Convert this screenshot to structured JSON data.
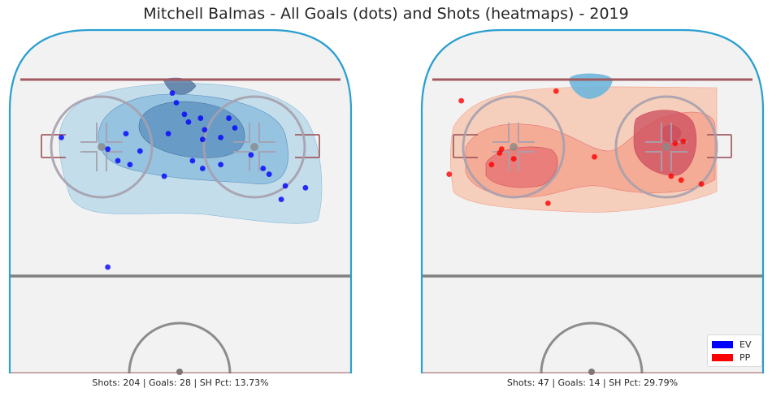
{
  "title": "Mitchell Balmas - All Goals (dots) and Shots (heatmaps) - 2019",
  "colors": {
    "ev": "#0000ff",
    "pp": "#ff0000",
    "boards": "#2a9fd0",
    "blue_line": "#808080",
    "goal_line": "#a05a60",
    "circle": "#a6a0ae",
    "ice": "#f2f2f2"
  },
  "legend": {
    "placement": "bottom-right",
    "entries": [
      {
        "label": "EV",
        "color": "#0000ff"
      },
      {
        "label": "PP",
        "color": "#ff0000"
      }
    ]
  },
  "chart_data": [
    {
      "type": "scatter",
      "panel": "left",
      "strength": "EV",
      "goal_color": "#0000ff",
      "heatmap_colors": [
        "#bcd9e9",
        "#86b9dc",
        "#5a8fbf",
        "#4a6d99"
      ],
      "stats_text": "Shots: 204 | Goals: 28 | SH Pct: 13.73%",
      "shots": 204,
      "goals": 28,
      "sh_pct": 13.73,
      "units": "feet from center of goal line (x: -42.5 to 42.5 across, y: 0 to 89 toward center ice)",
      "xlim": [
        -42.5,
        42.5
      ],
      "ylim": [
        0,
        89
      ],
      "goal_points": [
        {
          "x": -29.5,
          "y": 61
        },
        {
          "x": -18,
          "y": 58
        },
        {
          "x": -13.5,
          "y": 62
        },
        {
          "x": -15.5,
          "y": 55
        },
        {
          "x": -2,
          "y": 72.5
        },
        {
          "x": -1,
          "y": 70
        },
        {
          "x": 1,
          "y": 67
        },
        {
          "x": 2,
          "y": 65
        },
        {
          "x": 5,
          "y": 66
        },
        {
          "x": 6,
          "y": 63
        },
        {
          "x": -3,
          "y": 62
        },
        {
          "x": 5.5,
          "y": 60.5
        },
        {
          "x": 10,
          "y": 61
        },
        {
          "x": 12,
          "y": 66
        },
        {
          "x": 13.5,
          "y": 63.5
        },
        {
          "x": 17.5,
          "y": 56.5
        },
        {
          "x": 20.5,
          "y": 53
        },
        {
          "x": 10,
          "y": 54
        },
        {
          "x": -10,
          "y": 57.5
        },
        {
          "x": -12.5,
          "y": 54
        },
        {
          "x": 3,
          "y": 55
        },
        {
          "x": 5.5,
          "y": 53
        },
        {
          "x": -4,
          "y": 51
        },
        {
          "x": 22,
          "y": 51.5
        },
        {
          "x": 26,
          "y": 48.5
        },
        {
          "x": 31,
          "y": 48
        },
        {
          "x": 25,
          "y": 45
        },
        {
          "x": -18,
          "y": 27.5
        }
      ]
    },
    {
      "type": "scatter",
      "panel": "right",
      "strength": "PP",
      "goal_color": "#ff0000",
      "heatmap_colors": [
        "#f7c9b3",
        "#f4a08a",
        "#e46f70",
        "#cc4c5c"
      ],
      "stats_text": "Shots: 47 | Goals: 14 | SH Pct: 29.79%",
      "shots": 47,
      "goals": 14,
      "sh_pct": 29.79,
      "units": "feet from center of goal line (x: -42.5 to 42.5 across, y: 0 to 89 toward center ice)",
      "xlim": [
        -42.5,
        42.5
      ],
      "ylim": [
        0,
        89
      ],
      "goal_points": [
        {
          "x": -32.5,
          "y": 70.5
        },
        {
          "x": -9,
          "y": 73
        },
        {
          "x": -22.5,
          "y": 58
        },
        {
          "x": -23,
          "y": 57
        },
        {
          "x": -19.5,
          "y": 55.5
        },
        {
          "x": -25,
          "y": 54
        },
        {
          "x": -35.5,
          "y": 51.5
        },
        {
          "x": 0.5,
          "y": 56
        },
        {
          "x": 20.5,
          "y": 59.5
        },
        {
          "x": 22.5,
          "y": 60
        },
        {
          "x": 19.5,
          "y": 51
        },
        {
          "x": 22,
          "y": 50
        },
        {
          "x": 27,
          "y": 49
        },
        {
          "x": -11,
          "y": 44
        }
      ]
    }
  ]
}
